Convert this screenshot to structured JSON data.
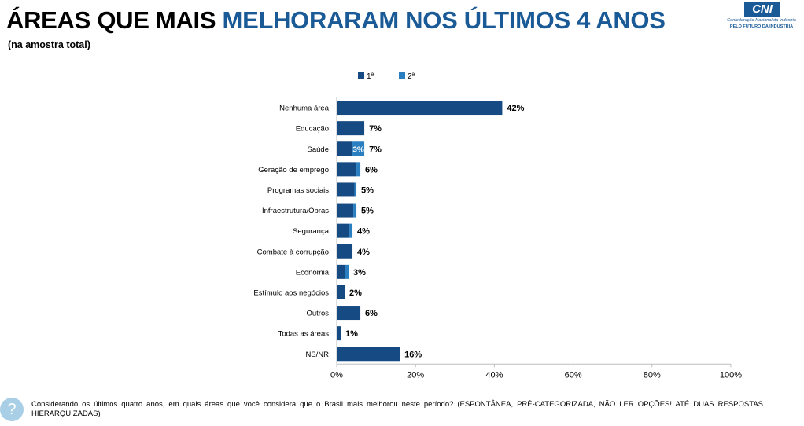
{
  "header": {
    "title_part1": "ÁREAS QUE MAIS",
    "title_part2": "MELHORARAM NOS ÚLTIMOS 4 ANOS",
    "subtitle": "(na amostra total)"
  },
  "logo": {
    "text": "CNI",
    "line1": "Confederação Nacional da Indústria",
    "line2": "PELO FUTURO DA INDÚSTRIA"
  },
  "colors": {
    "first": "#154a82",
    "second": "#2a7fc0",
    "title_accent": "#1a5a96"
  },
  "chart_data": {
    "type": "bar",
    "orientation": "horizontal",
    "stacked": true,
    "categories": [
      "Nenhuma área",
      "Educação",
      "Saúde",
      "Geração de emprego",
      "Programas sociais",
      "Infraestrutura/Obras",
      "Segurança",
      "Combate à corrupção",
      "Economia",
      "Estímulo aos negócios",
      "Outros",
      "Todas as áreas",
      "NS/NR"
    ],
    "series": [
      {
        "name": "1ª",
        "values": [
          42,
          7,
          4,
          5,
          4.5,
          4.2,
          3.2,
          4,
          2,
          2,
          6,
          1,
          16
        ]
      },
      {
        "name": "2ª",
        "values": [
          0,
          0,
          3,
          1,
          0.5,
          0.8,
          0.8,
          0,
          1,
          0,
          0,
          0,
          0
        ]
      }
    ],
    "total_labels": [
      "42%",
      "7%",
      "7%",
      "6%",
      "5%",
      "5%",
      "4%",
      "4%",
      "3%",
      "2%",
      "6%",
      "1%",
      "16%"
    ],
    "inner_labels": [
      {
        "category": "Saúde",
        "series": "2ª",
        "label": "3%"
      }
    ],
    "x_ticks": [
      "0%",
      "20%",
      "40%",
      "60%",
      "80%",
      "100%"
    ],
    "xlim": [
      0,
      100
    ],
    "legend": "top",
    "grid": false
  },
  "footer": {
    "icon": "question-icon",
    "text": "Considerando os últimos quatro anos, em quais áreas que você considera que o Brasil mais melhorou neste período? (ESPONTÂNEA, PRÉ-CATEGORIZADA, NÃO LER OPÇÕES! ATÉ DUAS RESPOSTAS HIERARQUIZADAS)"
  }
}
